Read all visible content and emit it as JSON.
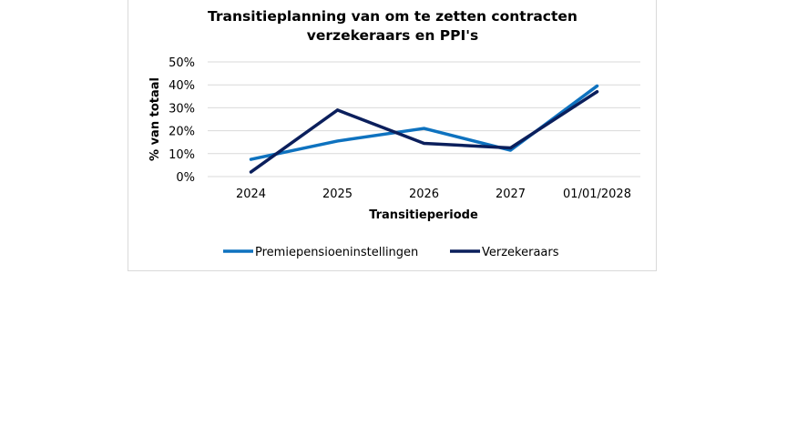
{
  "chart_data": {
    "type": "line",
    "title_line1": "Transitieplanning van om te zetten contracten",
    "title_line2": "verzekeraars en PPI's",
    "xlabel": "Transitieperiode",
    "ylabel": "% van totaal",
    "categories": [
      "2024",
      "2025",
      "2026",
      "2027",
      "01/01/2028"
    ],
    "y_ticks": [
      "0%",
      "10%",
      "20%",
      "30%",
      "40%",
      "50%"
    ],
    "ylim": [
      0,
      50
    ],
    "grid": true,
    "legend_position": "bottom",
    "series": [
      {
        "name": "Premiepensioeninstellingen",
        "color": "#0e72bf",
        "values": [
          7.5,
          15.5,
          21,
          11.5,
          39.5
        ]
      },
      {
        "name": "Verzekeraars",
        "color": "#0b1f5c",
        "values": [
          2,
          29,
          14.5,
          12.5,
          37
        ]
      }
    ]
  }
}
